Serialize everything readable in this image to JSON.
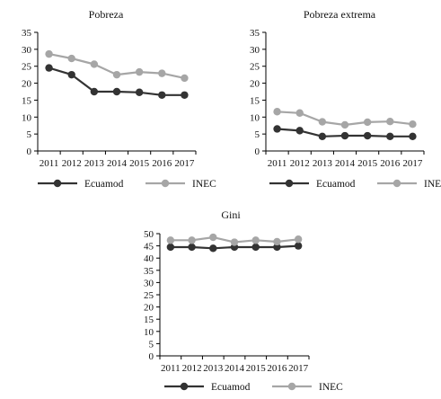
{
  "colors": {
    "ecuamod": "#333333",
    "inec": "#a6a6a6",
    "axis": "#000000"
  },
  "legend": {
    "series1": "Ecuamod",
    "series2": "INEC"
  },
  "chart_data": [
    {
      "type": "line",
      "title": "Pobreza",
      "x": [
        "2011",
        "2012",
        "2013",
        "2014",
        "2015",
        "2016",
        "2017"
      ],
      "ylim": [
        0,
        35
      ],
      "yticks": [
        "0",
        "5",
        "10",
        "15",
        "20",
        "25",
        "30",
        "35"
      ],
      "legend_position": "bottom",
      "grid": false,
      "series": [
        {
          "name": "Ecuamod",
          "values": [
            24.5,
            22.5,
            17.5,
            17.5,
            17.3,
            16.5,
            16.5
          ]
        },
        {
          "name": "INEC",
          "values": [
            28.6,
            27.3,
            25.6,
            22.5,
            23.3,
            22.9,
            21.5
          ]
        }
      ]
    },
    {
      "type": "line",
      "title": "Pobreza extrema",
      "x": [
        "2011",
        "2012",
        "2013",
        "2014",
        "2015",
        "2016",
        "2017"
      ],
      "ylim": [
        0,
        35
      ],
      "yticks": [
        "0",
        "5",
        "10",
        "15",
        "20",
        "25",
        "30",
        "35"
      ],
      "legend_position": "bottom",
      "grid": false,
      "series": [
        {
          "name": "Ecuamod",
          "values": [
            6.5,
            6.0,
            4.3,
            4.5,
            4.5,
            4.3,
            4.3
          ]
        },
        {
          "name": "INEC",
          "values": [
            11.6,
            11.2,
            8.6,
            7.7,
            8.5,
            8.7,
            7.9
          ]
        }
      ]
    },
    {
      "type": "line",
      "title": "Gini",
      "x": [
        "2011",
        "2012",
        "2013",
        "2014",
        "2015",
        "2016",
        "2017"
      ],
      "ylim": [
        0,
        50
      ],
      "yticks": [
        "0",
        "5",
        "10",
        "15",
        "20",
        "25",
        "30",
        "35",
        "40",
        "45",
        "50"
      ],
      "legend_position": "bottom",
      "grid": false,
      "series": [
        {
          "name": "Ecuamod",
          "values": [
            44.5,
            44.5,
            44.0,
            44.5,
            44.5,
            44.5,
            45.0
          ]
        },
        {
          "name": "INEC",
          "values": [
            47.3,
            47.3,
            48.5,
            46.5,
            47.3,
            46.7,
            47.7
          ]
        }
      ]
    }
  ]
}
